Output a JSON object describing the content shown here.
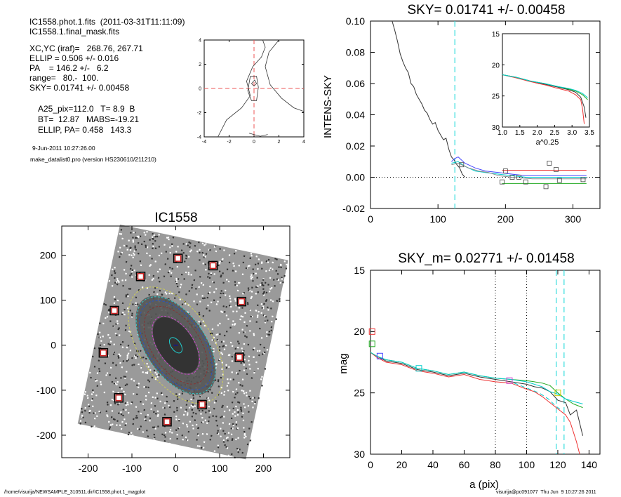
{
  "info": {
    "line1": "IC1558.phot.1.fits  (2011-03-31T11:11:09)",
    "line2": "IC1558.1.final_mask.fits",
    "xcyc": "XC,YC (iraf)=   268.76, 267.71",
    "ellip": "ELLIP = 0.506 +/- 0.016",
    "pa": "PA    = 146.2 +/-   6.2",
    "range": "range=   80.-  100.",
    "sky": "SKY= 0.01741 +/- 0.00458",
    "a25": "A25_pix=112.0   T= 8.9  B",
    "bt": "BT=  12.87   MABS=-19.21",
    "ellip_pa": "ELLIP, PA= 0.458   143.3",
    "date": "9-Jun-2011 10:27:26.00",
    "program": "make_datalist0.pro (version HS230610/211210)"
  },
  "footer": {
    "left": "/home/visurija/NEWSAMPLE_310511.dir/IC1558.phot.1_magplot",
    "right": "visurija@pc091077  Thu Jun  9 10:27:26 2011"
  },
  "chart_data": [
    {
      "type": "contour",
      "xlim": [
        -4,
        4
      ],
      "ylim": [
        -4,
        4
      ],
      "xticks": [
        "-4",
        "-2",
        "0",
        "2",
        "4"
      ],
      "yticks": [
        "-4",
        "-2",
        "0",
        "2",
        "4"
      ],
      "crosshair": [
        0,
        0
      ],
      "contours": [
        [
          [
            -2.9,
            -4.0
          ],
          [
            -2.2,
            -2.6
          ],
          [
            -1.0,
            -1.6
          ],
          [
            -0.3,
            -0.6
          ],
          [
            -0.6,
            0.6
          ],
          [
            -0.1,
            1.8
          ],
          [
            0.6,
            2.6
          ],
          [
            0.9,
            3.4
          ],
          [
            0.7,
            4.0
          ]
        ],
        [
          [
            2.0,
            4.0
          ],
          [
            1.2,
            3.0
          ],
          [
            0.9,
            1.8
          ],
          [
            1.3,
            0.3
          ],
          [
            2.2,
            -0.8
          ],
          [
            3.2,
            -1.6
          ],
          [
            4.0,
            -1.9
          ]
        ],
        [
          [
            -0.2,
            0.4
          ],
          [
            0.0,
            0.2
          ],
          [
            0.2,
            0.4
          ],
          [
            0.05,
            0.7
          ],
          [
            -0.2,
            0.4
          ]
        ],
        [
          [
            -0.5,
            -0.2
          ],
          [
            -0.2,
            -1.0
          ],
          [
            0.2,
            -1.0
          ],
          [
            0.35,
            0.1
          ],
          [
            0.2,
            1.0
          ],
          [
            -0.3,
            1.0
          ],
          [
            -0.5,
            -0.2
          ]
        ],
        [
          [
            -0.4,
            -3.7
          ],
          [
            0.5,
            -3.95
          ],
          [
            1.1,
            -3.8
          ]
        ]
      ]
    },
    {
      "type": "line",
      "title": "SKY= 0.01741 +/- 0.00458",
      "ylabel": "INTENS-SKY",
      "xlim": [
        0,
        340
      ],
      "ylim": [
        -0.02,
        0.1
      ],
      "xticks": [
        "0",
        "100",
        "200",
        "300"
      ],
      "yticks": [
        "-0.02",
        "0.00",
        "0.02",
        "0.04",
        "0.06",
        "0.08",
        "0.10"
      ],
      "sky_radius": 125,
      "series": [
        {
          "color": "#333333",
          "x": [
            32,
            36,
            40,
            44,
            48,
            52,
            56,
            60,
            64,
            68,
            72,
            76,
            80,
            84,
            88,
            92,
            96,
            100,
            104,
            108,
            112,
            116,
            120,
            124,
            128,
            132,
            136,
            140
          ],
          "y": [
            0.1,
            0.094,
            0.087,
            0.079,
            0.074,
            0.07,
            0.067,
            0.06,
            0.058,
            0.053,
            0.05,
            0.047,
            0.043,
            0.041,
            0.037,
            0.034,
            0.035,
            0.03,
            0.027,
            0.024,
            0.025,
            0.018,
            0.013,
            0.011,
            0.008,
            0.006,
            0.002,
            0.0
          ]
        },
        {
          "color": "#4444ff",
          "x": [
            120,
            125,
            130,
            140,
            155,
            170,
            190,
            210,
            230,
            260,
            290,
            320
          ],
          "y": [
            0.01,
            0.012,
            0.013,
            0.009,
            0.006,
            0.004,
            0.003,
            0.002,
            0.001,
            0.001,
            0.001,
            0.001
          ]
        },
        {
          "color": "#00cccc",
          "x": [
            120,
            130,
            140,
            155,
            170,
            190,
            210,
            230,
            260,
            290,
            320
          ],
          "y": [
            0.009,
            0.01,
            0.007,
            0.004,
            0.003,
            0.002,
            0.001,
            0.0,
            0.0,
            0.0,
            0.0
          ]
        },
        {
          "color": "#888888",
          "x": [
            120,
            130,
            145,
            160,
            175,
            190,
            210,
            240,
            270,
            300,
            320
          ],
          "y": [
            0.008,
            0.009,
            0.006,
            0.004,
            0.003,
            0.001,
            0.0,
            -0.001,
            -0.001,
            -0.001,
            -0.001
          ]
        },
        {
          "color": "#ee3333",
          "x": [
            195,
            215,
            240,
            265,
            290,
            320
          ],
          "y": [
            0.0045,
            0.0045,
            0.0045,
            0.0045,
            0.0045,
            0.0045
          ]
        },
        {
          "color": "#22aa22",
          "x": [
            195,
            215,
            240,
            265,
            290,
            320
          ],
          "y": [
            -0.004,
            -0.004,
            -0.004,
            -0.004,
            -0.004,
            -0.004
          ]
        }
      ],
      "markers": [
        [
          135,
          0.008
        ],
        [
          200,
          0.004
        ],
        [
          220,
          0.0
        ],
        [
          265,
          0.009
        ],
        [
          275,
          0.005
        ],
        [
          315,
          -0.0015
        ],
        [
          195,
          -0.003
        ],
        [
          230,
          -0.003
        ],
        [
          260,
          -0.006
        ],
        [
          210,
          0.0
        ],
        [
          280,
          -0.002
        ]
      ],
      "inset": {
        "xlabel": "a^0.25",
        "xlim": [
          1.0,
          3.5
        ],
        "ylim": [
          15,
          30
        ],
        "xticks": [
          "1.0",
          "1.5",
          "2.0",
          "2.5",
          "3.0",
          "3.5"
        ],
        "yticks": [
          "15",
          "20",
          "25",
          "30"
        ],
        "series": [
          {
            "color": "#333333",
            "x": [
              1.0,
              1.4,
              1.8,
              2.2,
              2.6,
              2.9,
              3.1,
              3.25,
              3.35,
              3.4
            ],
            "y": [
              21.6,
              22.0,
              22.6,
              23.1,
              23.6,
              24.0,
              24.4,
              25.2,
              26.8,
              28.5
            ]
          },
          {
            "color": "#ee3333",
            "x": [
              1.0,
              1.4,
              1.8,
              2.2,
              2.6,
              2.9,
              3.1,
              3.25,
              3.3,
              3.35
            ],
            "y": [
              21.6,
              22.1,
              22.7,
              23.2,
              23.8,
              24.2,
              24.8,
              25.6,
              27.0,
              29.5
            ]
          },
          {
            "color": "#22aa22",
            "x": [
              1.0,
              1.4,
              1.8,
              2.2,
              2.6,
              2.9,
              3.1,
              3.3,
              3.45
            ],
            "y": [
              21.6,
              22.0,
              22.6,
              23.0,
              23.5,
              23.9,
              24.2,
              24.8,
              25.6
            ]
          },
          {
            "color": "#00cccc",
            "x": [
              1.0,
              1.4,
              1.8,
              2.2,
              2.6,
              2.9,
              3.1,
              3.3,
              3.45
            ],
            "y": [
              21.6,
              22.0,
              22.6,
              23.0,
              23.5,
              23.8,
              24.1,
              24.6,
              25.3
            ]
          }
        ]
      }
    },
    {
      "type": "image",
      "title": "IC1558",
      "xlim": [
        -260,
        260
      ],
      "ylim": [
        -250,
        265
      ],
      "xticks": [
        "-200",
        "-100",
        "0",
        "100",
        "200"
      ],
      "yticks": [
        "-200",
        "-100",
        "0",
        "100",
        "200"
      ],
      "galaxy_center": [
        0,
        0
      ],
      "isophote_semimajor": [
        20,
        75,
        100,
        115,
        125,
        150
      ],
      "isophote_ellipticity": 0.45,
      "position_angle_deg": 146,
      "mask_boxes": [
        [
          5,
          193
        ],
        [
          -80,
          153
        ],
        [
          85,
          177
        ],
        [
          -140,
          77
        ],
        [
          150,
          97
        ],
        [
          -165,
          -17
        ],
        [
          145,
          -27
        ],
        [
          -130,
          -117
        ],
        [
          60,
          -132
        ],
        [
          -20,
          -170
        ]
      ]
    },
    {
      "type": "line",
      "title": "SKY_m=  0.02771 +/- 0.01458",
      "xlabel": "a (pix)",
      "ylabel": "mag",
      "xlim": [
        0,
        147
      ],
      "ylim": [
        15,
        30
      ],
      "ylim_inverted": true,
      "xticks": [
        "0",
        "20",
        "40",
        "60",
        "80",
        "100",
        "120",
        "140"
      ],
      "yticks": [
        "15",
        "20",
        "25",
        "30"
      ],
      "vertical_dotted": [
        80,
        100
      ],
      "vertical_dashed": [
        119,
        124
      ],
      "series": [
        {
          "color": "#333333",
          "x": [
            0,
            4,
            10,
            20,
            30,
            40,
            50,
            60,
            70,
            80,
            90,
            100,
            105,
            110,
            115,
            120,
            125,
            128,
            132,
            136
          ],
          "y": [
            21.7,
            22.0,
            22.4,
            22.6,
            23.1,
            23.3,
            23.6,
            23.4,
            23.7,
            23.9,
            24.1,
            24.3,
            24.5,
            24.6,
            24.9,
            25.6,
            25.8,
            26.8,
            26.4,
            28.5
          ]
        },
        {
          "color": "#ee3333",
          "x": [
            0,
            4,
            10,
            20,
            30,
            40,
            50,
            60,
            70,
            80,
            90,
            100,
            105,
            110,
            115,
            120,
            125,
            128,
            132,
            134
          ],
          "y": [
            21.7,
            22.1,
            22.5,
            22.7,
            23.2,
            23.4,
            23.7,
            23.5,
            23.9,
            24.1,
            24.2,
            24.7,
            24.9,
            25.3,
            25.8,
            26.3,
            26.8,
            27.4,
            29.0,
            30.2
          ]
        },
        {
          "color": "#22aa22",
          "x": [
            0,
            4,
            10,
            20,
            30,
            40,
            50,
            60,
            70,
            80,
            90,
            100,
            105,
            110,
            115,
            120,
            125,
            130,
            136
          ],
          "y": [
            21.7,
            22.0,
            22.3,
            22.5,
            23.0,
            23.2,
            23.5,
            23.3,
            23.6,
            23.8,
            23.9,
            24.0,
            24.1,
            24.2,
            24.4,
            25.0,
            25.5,
            25.9,
            26.2
          ]
        },
        {
          "color": "#00cccc",
          "x": [
            0,
            4,
            10,
            20,
            30,
            40,
            50,
            60,
            70,
            80,
            90,
            100,
            105,
            110,
            115,
            120,
            125,
            130,
            136
          ],
          "y": [
            21.7,
            22.0,
            22.3,
            22.5,
            23.0,
            23.2,
            23.5,
            23.3,
            23.6,
            23.8,
            23.9,
            24.1,
            24.3,
            24.5,
            24.9,
            25.1,
            25.5,
            25.7,
            25.9
          ]
        },
        {
          "color": "#00cccc",
          "dashed": true,
          "x": [
            92,
            100,
            108,
            114,
            118,
            122
          ],
          "y": [
            24.2,
            24.6,
            25.0,
            25.5,
            26.0,
            26.4
          ]
        }
      ],
      "markers": [
        {
          "x": 1,
          "y": 20.0,
          "color": "#ee3333"
        },
        {
          "x": 1,
          "y": 21.0,
          "color": "#22aa22"
        },
        {
          "x": 6,
          "y": 22.0,
          "color": "#4444ff"
        },
        {
          "x": 31,
          "y": 23.0,
          "color": "#00cccc"
        },
        {
          "x": 89,
          "y": 24.0,
          "color": "#cc44cc"
        },
        {
          "x": 120,
          "y": 25.0,
          "color": "#cccc00"
        }
      ]
    }
  ]
}
